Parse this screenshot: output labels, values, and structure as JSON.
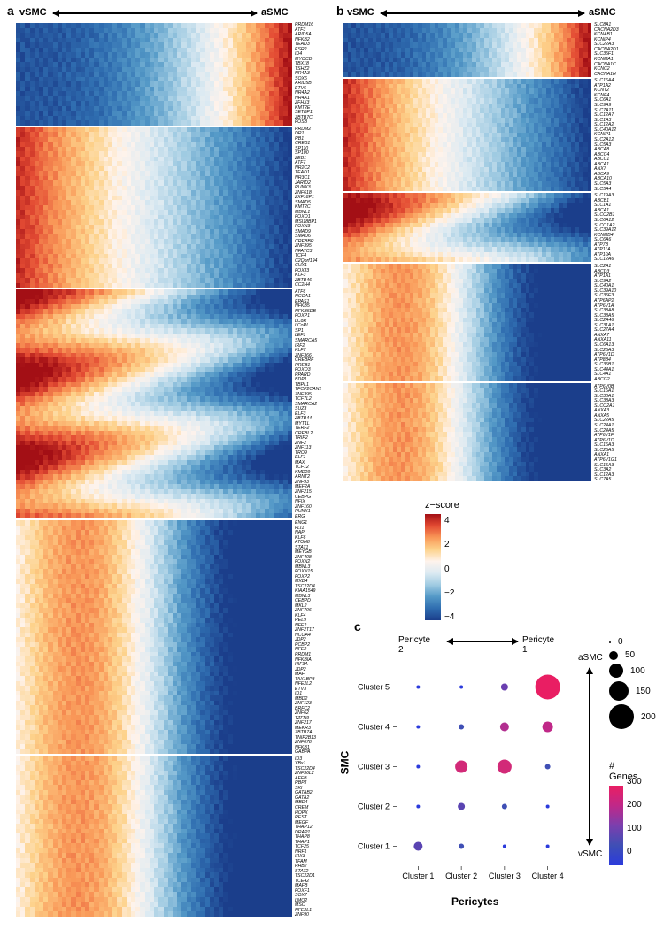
{
  "panels": {
    "a": "a",
    "b": "b",
    "c": "c"
  },
  "smc_axis": {
    "left": "vSMC",
    "right": "aSMC"
  },
  "zscore_legend": {
    "title": "z−score",
    "ticks": [
      "4",
      "2",
      "0",
      "−2",
      "−4"
    ]
  },
  "heatmap_colors": {
    "scale": [
      "#1b3e8b",
      "#2f6db0",
      "#5499c7",
      "#a0cbe2",
      "#dceaf2",
      "#fef3ec",
      "#fdd28b",
      "#f99858",
      "#e34b33",
      "#a30f15"
    ]
  },
  "panel_a": {
    "width_cols": 60,
    "blocks": [
      {
        "pattern": "right_high",
        "genes": [
          "PRDM16",
          "ATF3",
          "ARID5A",
          "NFKB2",
          "TEAD3",
          "ESR2",
          "ID4",
          "MYOCD",
          "TBX18",
          "TSHZ2",
          "NR4A3",
          "SOX6",
          "ARID5B",
          "ETV6",
          "NR4A2",
          "NR4A1",
          "ZFHX3",
          "KMT2E",
          "SETBP1",
          "ZBTB7C",
          "FOSB"
        ]
      },
      {
        "pattern": "left_high",
        "genes": [
          "PRDM2",
          "DR1",
          "RB1",
          "CREB1",
          "SP110",
          "SP100",
          "ZEB1",
          "ATF7",
          "NR2C2",
          "TEAD1",
          "NR3C1",
          "JARID2",
          "RUNX3",
          "ZNF618",
          "ZXF18P1",
          "SMAD5",
          "KMT2C",
          "MBNL1",
          "FOXO1",
          "MSI18BP1",
          "FOXN3",
          "SMAD9",
          "SMAD6",
          "CREBBP",
          "ZNF395",
          "NFATC3",
          "TCF4",
          "C2Qorf194",
          "CUX1",
          "FOXJ3",
          "KLF3",
          "ZBTB46",
          "CC2H4"
        ]
      },
      {
        "pattern": "left_mid_high",
        "genes": [
          "ATF6",
          "NCOA1",
          "EPAS1",
          "NFKB5",
          "NFKB5DB",
          "FOXP1",
          "LCoR",
          "LCoRL",
          "SP1",
          "LEF1",
          "SMARCA5",
          "IRF2",
          "KLF7",
          "ZNF366",
          "CREBRF",
          "RREB1",
          "FOXO3",
          "PPARD",
          "BDP1",
          "TBPL1",
          "TFCP2CAN1",
          "ZNF395",
          "TCF7L2",
          "SMARCA2",
          "SUZ3",
          "ELF3",
          "ZBTB44",
          "MYT1L",
          "TERF2",
          "CREBL2",
          "TRIP2",
          "ZNF2",
          "ZNF113",
          "TRO9",
          "ELF1",
          "MAX",
          "TCF12",
          "KMD29",
          "ARNT2",
          "ZNF93",
          "MEF2A",
          "ZNF215",
          "CEBPG",
          "NFIX",
          "ZNF160",
          "RUNX1",
          "ERG"
        ]
      },
      {
        "pattern": "center_left_high",
        "genes": [
          "ENG1",
          "FLI1",
          "NAP",
          "KLF6",
          "ATOH8",
          "STAT1",
          "MEYGB",
          "ZNF408",
          "FOXN2",
          "MBNL3",
          "FOXN15",
          "FOXP2",
          "MXD4",
          "TSC22D4",
          "KIAA1549",
          "MBNL3",
          "CEBPD",
          "MKL2",
          "ZNF706",
          "KLF4",
          "REL9",
          "NFE2",
          "ZNF2T17",
          "NCOA4",
          "JDP2",
          "PCBP2",
          "NFE2",
          "PRDM1",
          "NFKBIA",
          "HIF3A",
          "JDP2",
          "MAF",
          "TAX1BP3",
          "NFE2L2",
          "ETV3",
          "ID1",
          "MBD2",
          "ZNF123",
          "BRFC2",
          "ZNF62",
          "TZFN9",
          "ZNF217",
          "MEKR3",
          "ZBTB7A",
          "TNIP2B13",
          "ZNF678",
          "NFKB1",
          "GABPA"
        ]
      },
      {
        "pattern": "center_left_high",
        "genes": [
          "ID3",
          "YBx1",
          "TSC22D4",
          "ZNF36L2",
          "AEFB",
          "RBPJ",
          "SKI",
          "GATAB2",
          "GATA2",
          "MBD4",
          "CREM",
          "HOPX",
          "REST",
          "MEGF",
          "THAP12",
          "DRAP1",
          "THAP8",
          "THAP1",
          "TCF25",
          "NRF1",
          "IRX3",
          "TFAM",
          "PHB2",
          "STAT2",
          "TSC22D1",
          "TCE42",
          "MAFB",
          "FOXF1",
          "SOX7",
          "LMO2",
          "MSC",
          "NFE2L1",
          "ZNF90"
        ]
      }
    ]
  },
  "panel_b": {
    "width_cols": 60,
    "blocks": [
      {
        "pattern": "right_high",
        "genes": [
          "SLC8A1",
          "CACNA2D3",
          "KCNAB1",
          "KCNIP4",
          "SLC22A3",
          "CACNA2D1",
          "SLC35F1",
          "KCNMA1",
          "CACNA1C",
          "KCNC2",
          "CACNA1H"
        ]
      },
      {
        "pattern": "left_high",
        "genes": [
          "SLC16A4",
          "ATP1A2",
          "KCNT2",
          "KCNE4",
          "SLC6A1",
          "SLC9A9",
          "SLC7A11",
          "SLC12A7",
          "SLC1A3",
          "SLC12A2",
          "SLC40A12",
          "KCNIP1",
          "SLC2A12",
          "SLC5A3",
          "ABCA8",
          "ABCC4",
          "ABCC1",
          "ABCA1",
          "ANX7",
          "ABCA9",
          "ABCA10",
          "SLC5A3",
          "SLC5A4"
        ]
      },
      {
        "pattern": "left_mid_high",
        "genes": [
          "SLC19A3",
          "ABCB1",
          "SLC1A1",
          "ABCA1",
          "SLCO2B1",
          "SLC6A12",
          "SLCO1A2",
          "SLC39A12",
          "KCNMB4",
          "SLC6A6",
          "ATP7B",
          "ATP11A",
          "ATP10A",
          "SLC12A6"
        ]
      },
      {
        "pattern": "center_left_high",
        "genes": [
          "SLC2A1",
          "ABCD3",
          "ATP1A1",
          "SLC9A2",
          "SLC40A1",
          "SLC39A10",
          "SLC35E3",
          "ATP6AP2",
          "ATP6V1A",
          "SLC38A8",
          "SLC38A5",
          "SLC2A46",
          "SLC31A1",
          "SLC27A4",
          "ANXA7",
          "ANXA11",
          "SLC6A13",
          "SLC25A3",
          "ATP6V1D",
          "ATP8B4",
          "SLC35B1",
          "SLC44A1",
          "SLC4A1",
          "ABCG2"
        ]
      },
      {
        "pattern": "center_left_high",
        "genes": [
          "ATP6V0B",
          "SLC16A1",
          "SLC30A1",
          "SLC38A3",
          "SLCO2A1",
          "ANXA3",
          "ANXA5",
          "SLC22A5",
          "SLC24A1",
          "SLC24A5",
          "ATP6V1F",
          "ATP6V1D",
          "SLC16A3",
          "SLC25A5",
          "ANXA1",
          "ATP6V1G1",
          "SLC15A3",
          "SLC3A2",
          "SLC12A3",
          "SLC7A5"
        ]
      }
    ]
  },
  "panel_c": {
    "x_title": "Pericytes",
    "y_title": "SMC",
    "x_arrow": {
      "left": "Pericyte 2",
      "right": "Pericyte 1"
    },
    "y_arrow": {
      "top": "aSMC",
      "bottom": "vSMC"
    },
    "x_labels": [
      "Cluster 1",
      "Cluster 2",
      "Cluster 3",
      "Cluster 4"
    ],
    "y_labels": [
      "Cluster 5",
      "Cluster 4",
      "Cluster 3",
      "Cluster 2",
      "Cluster 1"
    ],
    "size_legend": {
      "values": [
        0,
        50,
        100,
        150,
        200
      ],
      "radii": [
        1,
        5,
        8,
        11,
        14
      ]
    },
    "color_legend": {
      "title": "# Genes",
      "ticks": [
        "300",
        "200",
        "100",
        "0"
      ],
      "stops": [
        "#e91e63",
        "#c02888",
        "#7b3fae",
        "#3f4fb5",
        "#2b3bdc"
      ]
    },
    "points": [
      {
        "x": 0,
        "y": 0,
        "r": 2,
        "c": "#2b3bdc"
      },
      {
        "x": 1,
        "y": 0,
        "r": 2,
        "c": "#2b3bdc"
      },
      {
        "x": 2,
        "y": 0,
        "r": 4,
        "c": "#6a3fb0"
      },
      {
        "x": 3,
        "y": 0,
        "r": 14,
        "c": "#e91e63"
      },
      {
        "x": 0,
        "y": 1,
        "r": 2,
        "c": "#2b3bdc"
      },
      {
        "x": 1,
        "y": 1,
        "r": 3,
        "c": "#3f4fb5"
      },
      {
        "x": 2,
        "y": 1,
        "r": 5,
        "c": "#b22f90"
      },
      {
        "x": 3,
        "y": 1,
        "r": 6,
        "c": "#c02888"
      },
      {
        "x": 0,
        "y": 2,
        "r": 2,
        "c": "#2b3bdc"
      },
      {
        "x": 1,
        "y": 2,
        "r": 7,
        "c": "#d22a78"
      },
      {
        "x": 2,
        "y": 2,
        "r": 8,
        "c": "#d22a78"
      },
      {
        "x": 3,
        "y": 2,
        "r": 3,
        "c": "#3f4fb5"
      },
      {
        "x": 0,
        "y": 3,
        "r": 2,
        "c": "#2b3bdc"
      },
      {
        "x": 1,
        "y": 3,
        "r": 4,
        "c": "#5a44b2"
      },
      {
        "x": 2,
        "y": 3,
        "r": 3,
        "c": "#3f4fb5"
      },
      {
        "x": 3,
        "y": 3,
        "r": 2,
        "c": "#2b3bdc"
      },
      {
        "x": 0,
        "y": 4,
        "r": 5,
        "c": "#5a44b2"
      },
      {
        "x": 1,
        "y": 4,
        "r": 3,
        "c": "#3f4fb5"
      },
      {
        "x": 2,
        "y": 4,
        "r": 2,
        "c": "#2b3bdc"
      },
      {
        "x": 3,
        "y": 4,
        "r": 2,
        "c": "#2b3bdc"
      }
    ]
  }
}
